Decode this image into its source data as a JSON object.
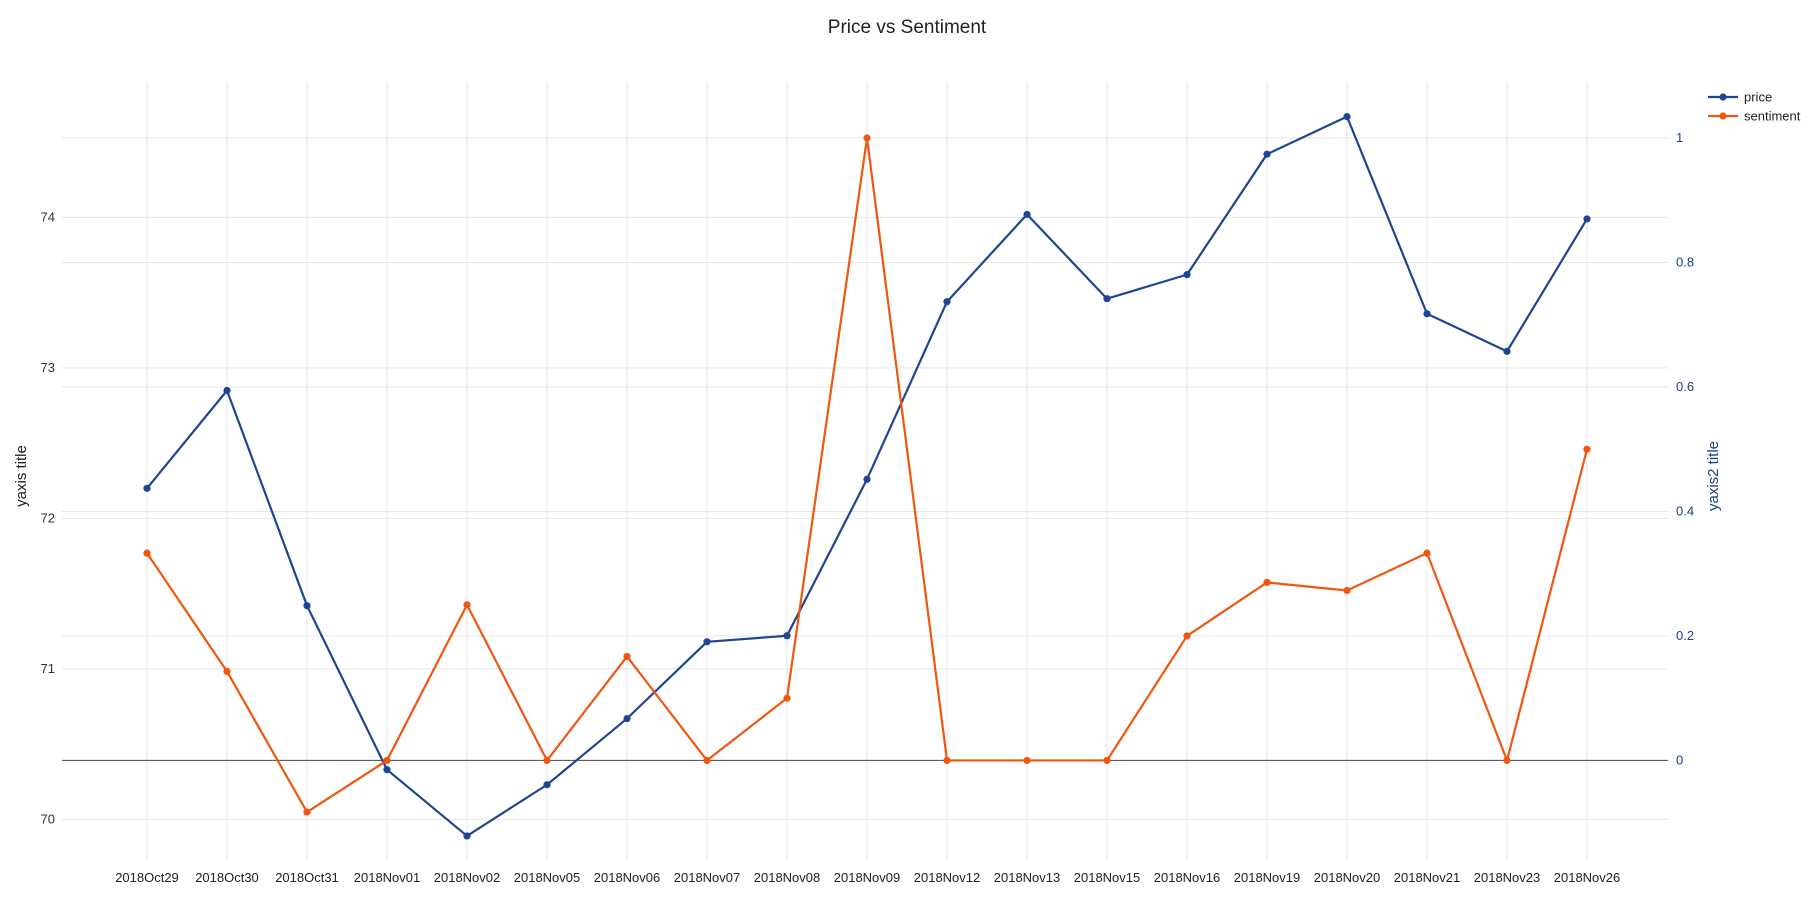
{
  "chart_data": {
    "type": "line",
    "title": "Price vs Sentiment",
    "ylabel": "yaxis title",
    "y2label": "yaxis2 title",
    "categories": [
      "2018Oct29",
      "2018Oct30",
      "2018Oct31",
      "2018Nov01",
      "2018Nov02",
      "2018Nov05",
      "2018Nov06",
      "2018Nov07",
      "2018Nov08",
      "2018Nov09",
      "2018Nov12",
      "2018Nov13",
      "2018Nov15",
      "2018Nov16",
      "2018Nov19",
      "2018Nov20",
      "2018Nov21",
      "2018Nov23",
      "2018Nov26"
    ],
    "ylim": [
      69.73,
      74.9
    ],
    "y2lim": [
      -0.16,
      1.09
    ],
    "yticks": [
      70,
      71,
      72,
      73,
      74
    ],
    "y2ticks": [
      0,
      0.2,
      0.4,
      0.6,
      0.8,
      1
    ],
    "y2tick_labels": [
      "0",
      "0.2",
      "0.4",
      "0.6",
      "0.8",
      "1"
    ],
    "grid": true,
    "legend_position": "top-right",
    "series": [
      {
        "name": "price",
        "axis": "y",
        "color": "#1f4591",
        "values": [
          72.2,
          72.85,
          71.42,
          70.33,
          69.89,
          70.23,
          70.67,
          71.18,
          71.22,
          72.26,
          73.44,
          74.02,
          73.46,
          73.62,
          74.42,
          74.67,
          73.36,
          73.11,
          73.99
        ]
      },
      {
        "name": "sentiment",
        "axis": "y2",
        "color": "#f0560f",
        "values": [
          0.333,
          0.143,
          -0.083,
          0.0,
          0.25,
          0.0,
          0.167,
          0.0,
          0.1,
          1.0,
          0.0,
          0.0,
          0.0,
          0.2,
          0.286,
          0.273,
          0.333,
          0.0,
          0.5
        ]
      }
    ]
  }
}
